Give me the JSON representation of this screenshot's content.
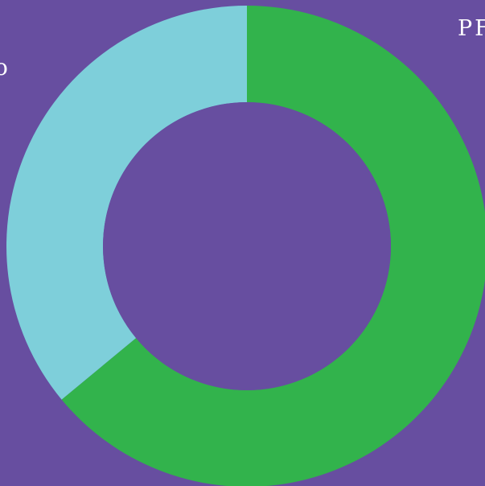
{
  "page": {
    "background": "#674EA0",
    "text_color": "#FFFFFF"
  },
  "labels": {
    "top_right": "PF",
    "left_edge": "o"
  },
  "chart_data": {
    "type": "pie",
    "donut": true,
    "hole_color": "#674EA0",
    "start_angle_deg": 0,
    "direction": "clockwise",
    "slices": [
      {
        "value": 64,
        "color": "#32B34C"
      },
      {
        "value": 36,
        "color": "#7ECFDA"
      }
    ],
    "title": "",
    "legend": false
  }
}
